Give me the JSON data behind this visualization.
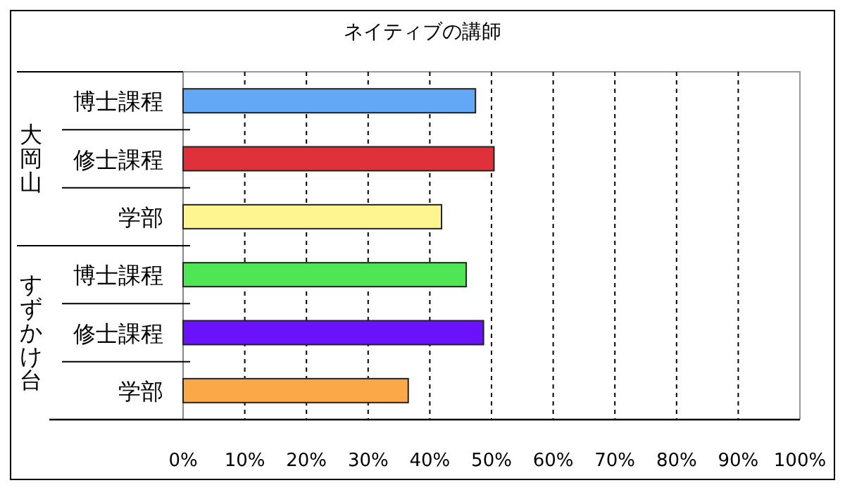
{
  "chart_data": {
    "type": "bar",
    "orientation": "horizontal",
    "title": "ネイティブの講師",
    "categories": [
      "博士課程",
      "修士課程",
      "学部",
      "博士課程",
      "修士課程",
      "学部"
    ],
    "values": [
      47.4,
      50.4,
      41.9,
      45.9,
      48.7,
      36.5
    ],
    "colors": [
      "#63a8f7",
      "#e0303a",
      "#fff590",
      "#4fe656",
      "#6a12fc",
      "#fba848"
    ],
    "xlim": [
      0,
      100
    ],
    "xticks": [
      {
        "value": 0,
        "label": "0%"
      },
      {
        "value": 10,
        "label": "10%"
      },
      {
        "value": 20,
        "label": "20%"
      },
      {
        "value": 30,
        "label": "30%"
      },
      {
        "value": 40,
        "label": "40%"
      },
      {
        "value": 50,
        "label": "50%"
      },
      {
        "value": 60,
        "label": "60%"
      },
      {
        "value": 70,
        "label": "70%"
      },
      {
        "value": 80,
        "label": "80%"
      },
      {
        "value": 90,
        "label": "90%"
      },
      {
        "value": 100,
        "label": "100%"
      }
    ],
    "grid": "x",
    "annotations": [
      "大岡山",
      "すずかけ台"
    ]
  }
}
